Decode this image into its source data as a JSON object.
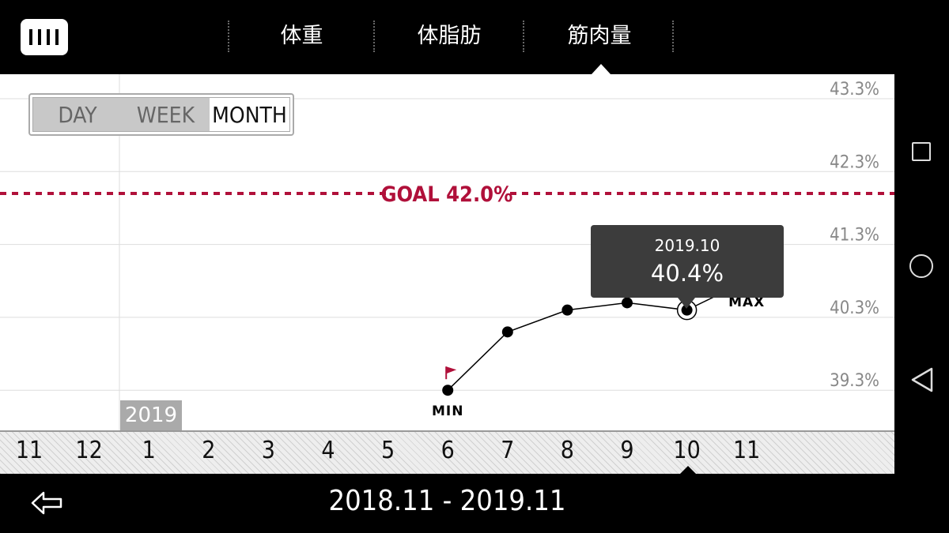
{
  "header": {
    "tabs": [
      {
        "label": "体重"
      },
      {
        "label": "体脂肪"
      },
      {
        "label": "筋肉量"
      }
    ],
    "selected_tab": "筋肉量",
    "logo_icon": "tanita-logo-icon"
  },
  "range_toggle": {
    "options": [
      "DAY",
      "WEEK",
      "MONTH"
    ],
    "selected": "MONTH"
  },
  "year_marker": "2019",
  "goal_label": "GOAL 42.0%",
  "tooltip": {
    "date": "2019.10",
    "value": "40.4%"
  },
  "markers": {
    "min": "MIN",
    "max": "MAX"
  },
  "date_range": "2018.11 - 2019.11",
  "nav_icons": [
    "recent-apps-icon",
    "home-icon",
    "back-icon"
  ],
  "colors": {
    "goal": "#b0103a",
    "flag": "#b0103a",
    "tooltip_bg": "#3c3c3c"
  },
  "chart_data": {
    "type": "line",
    "x": [
      "11",
      "12",
      "1",
      "2",
      "3",
      "4",
      "5",
      "6",
      "7",
      "8",
      "9",
      "10",
      "11"
    ],
    "ytick_labels": [
      "43.3%",
      "42.3%",
      "41.3%",
      "40.3%",
      "39.3%"
    ],
    "yticks": [
      43.3,
      42.3,
      41.3,
      40.3,
      39.3
    ],
    "ylim": [
      38.9,
      43.7
    ],
    "goal": 42.0,
    "series": [
      {
        "values": [
          null,
          null,
          null,
          null,
          null,
          null,
          null,
          39.3,
          40.1,
          40.4,
          40.5,
          40.4,
          40.8
        ]
      }
    ],
    "min_index": 7,
    "max_index": 12,
    "selected_index": 11
  }
}
